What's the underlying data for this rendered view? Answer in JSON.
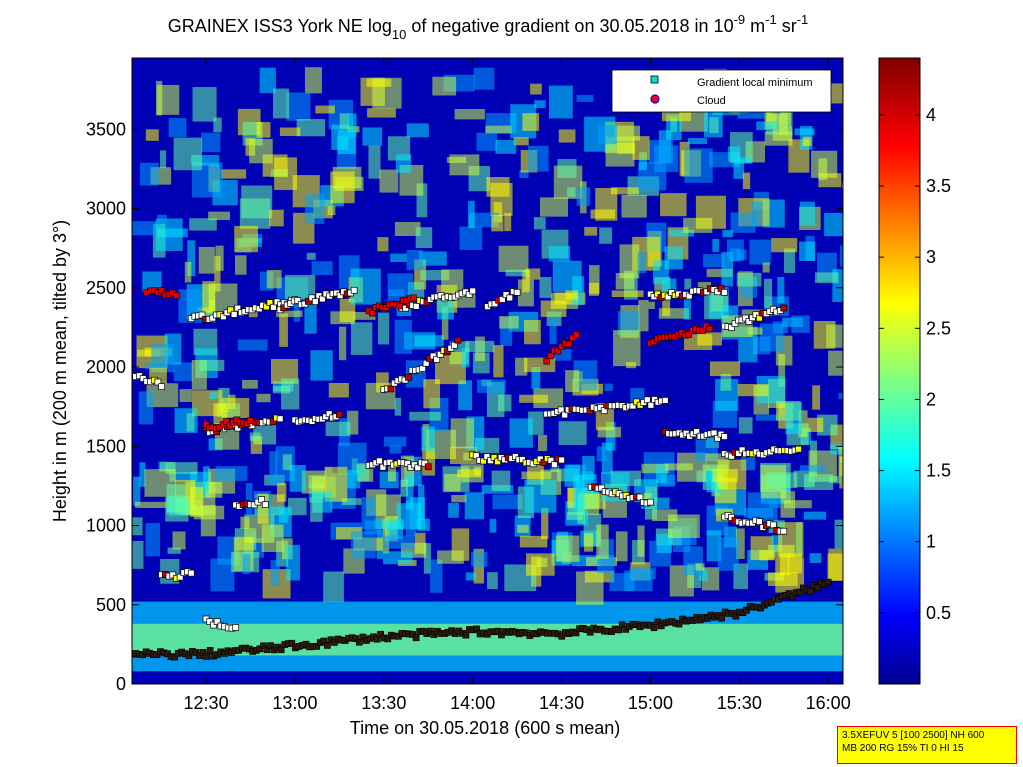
{
  "chart_data": {
    "type": "heatmap",
    "title_parts": {
      "pre": "GRAINEX ISS3 York NE log",
      "sub": "10",
      "mid": " of negative gradient on 30.05.2018 in 10",
      "sup1": "-9",
      "unit1": " m",
      "sup2": "-1",
      "unit2": " sr",
      "sup3": "-1"
    },
    "xlabel": "Time on 30.05.2018 (600 s mean)",
    "ylabel": "Height in m (200 m mean, tilted by 3°)",
    "xlim": [
      "12:05",
      "16:05"
    ],
    "ylim": [
      0,
      3950
    ],
    "x_ticks": [
      "12:30",
      "13:00",
      "13:30",
      "14:00",
      "14:30",
      "15:00",
      "15:30",
      "16:00"
    ],
    "y_ticks": [
      "0",
      "500",
      "1000",
      "1500",
      "2000",
      "2500",
      "3000",
      "3500"
    ],
    "colorbar": {
      "colormap": "jet",
      "range": [
        0,
        4.4
      ],
      "ticks": [
        "0.5",
        "1",
        "1.5",
        "2",
        "2.5",
        "3",
        "3.5",
        "4"
      ]
    },
    "legend": {
      "placement": "top-right",
      "entries": [
        {
          "label": "Gradient local minimum",
          "marker": "square",
          "color": "#00e0e0"
        },
        {
          "label": "Cloud",
          "marker": "circle",
          "color": "#ff0000",
          "edge": "#0000ff"
        }
      ]
    },
    "series": [
      {
        "name": "Gradient local minimum",
        "layers": [
          {
            "x": [
              "12:05",
              "12:30",
              "13:00",
              "13:30",
              "14:00",
              "14:30",
              "15:00",
              "15:30",
              "16:00"
            ],
            "y": [
              185,
              190,
              240,
              300,
              330,
              320,
              370,
              450,
              640
            ]
          },
          {
            "x": [
              "12:30",
              "12:40"
            ],
            "y": [
              400,
              360
            ]
          },
          {
            "x": [
              "12:15",
              "12:25"
            ],
            "y": [
              680,
              690
            ]
          },
          {
            "x": [
              "12:40",
              "12:50"
            ],
            "y": [
              1110,
              1150
            ]
          },
          {
            "x": [
              "13:25",
              "13:45"
            ],
            "y": [
              1390,
              1380
            ]
          },
          {
            "x": [
              "14:00",
              "14:30"
            ],
            "y": [
              1430,
              1400
            ]
          },
          {
            "x": [
              "14:40",
              "15:00"
            ],
            "y": [
              1250,
              1150
            ]
          },
          {
            "x": [
              "15:25",
              "15:45"
            ],
            "y": [
              1050,
              980
            ]
          },
          {
            "x": [
              "12:30",
              "12:55"
            ],
            "y": [
              1600,
              1680
            ]
          },
          {
            "x": [
              "13:00",
              "13:15"
            ],
            "y": [
              1650,
              1700
            ]
          },
          {
            "x": [
              "14:25",
              "15:05"
            ],
            "y": [
              1700,
              1790
            ]
          },
          {
            "x": [
              "15:05",
              "15:25"
            ],
            "y": [
              1600,
              1560
            ]
          },
          {
            "x": [
              "15:25",
              "15:50"
            ],
            "y": [
              1450,
              1480
            ]
          },
          {
            "x": [
              "12:05",
              "12:15"
            ],
            "y": [
              1950,
              1880
            ]
          },
          {
            "x": [
              "13:30",
              "13:55"
            ],
            "y": [
              1850,
              2150
            ]
          },
          {
            "x": [
              "12:25",
              "13:00"
            ],
            "y": [
              2300,
              2420
            ]
          },
          {
            "x": [
              "12:55",
              "13:20"
            ],
            "y": [
              2380,
              2480
            ]
          },
          {
            "x": [
              "13:35",
              "14:00"
            ],
            "y": [
              2380,
              2470
            ]
          },
          {
            "x": [
              "14:05",
              "14:15"
            ],
            "y": [
              2390,
              2470
            ]
          },
          {
            "x": [
              "15:00",
              "15:25"
            ],
            "y": [
              2450,
              2480
            ]
          },
          {
            "x": [
              "15:25",
              "15:45"
            ],
            "y": [
              2250,
              2370
            ]
          }
        ]
      },
      {
        "name": "Cloud",
        "layers": [
          {
            "x": [
              "12:10",
              "12:20"
            ],
            "y": [
              2480,
              2470
            ]
          },
          {
            "x": [
              "13:25",
              "13:40"
            ],
            "y": [
              2350,
              2420
            ]
          },
          {
            "x": [
              "14:25",
              "14:35"
            ],
            "y": [
              2050,
              2200
            ]
          },
          {
            "x": [
              "15:00",
              "15:20"
            ],
            "y": [
              2150,
              2250
            ]
          },
          {
            "x": [
              "12:30",
              "12:45"
            ],
            "y": [
              1620,
              1660
            ]
          }
        ]
      }
    ]
  },
  "info_box": {
    "line1": "3.5XEFUV 5 [100 2500] NH 600",
    "line2": "MB 200 RG 15% TI 0 HI 15"
  }
}
